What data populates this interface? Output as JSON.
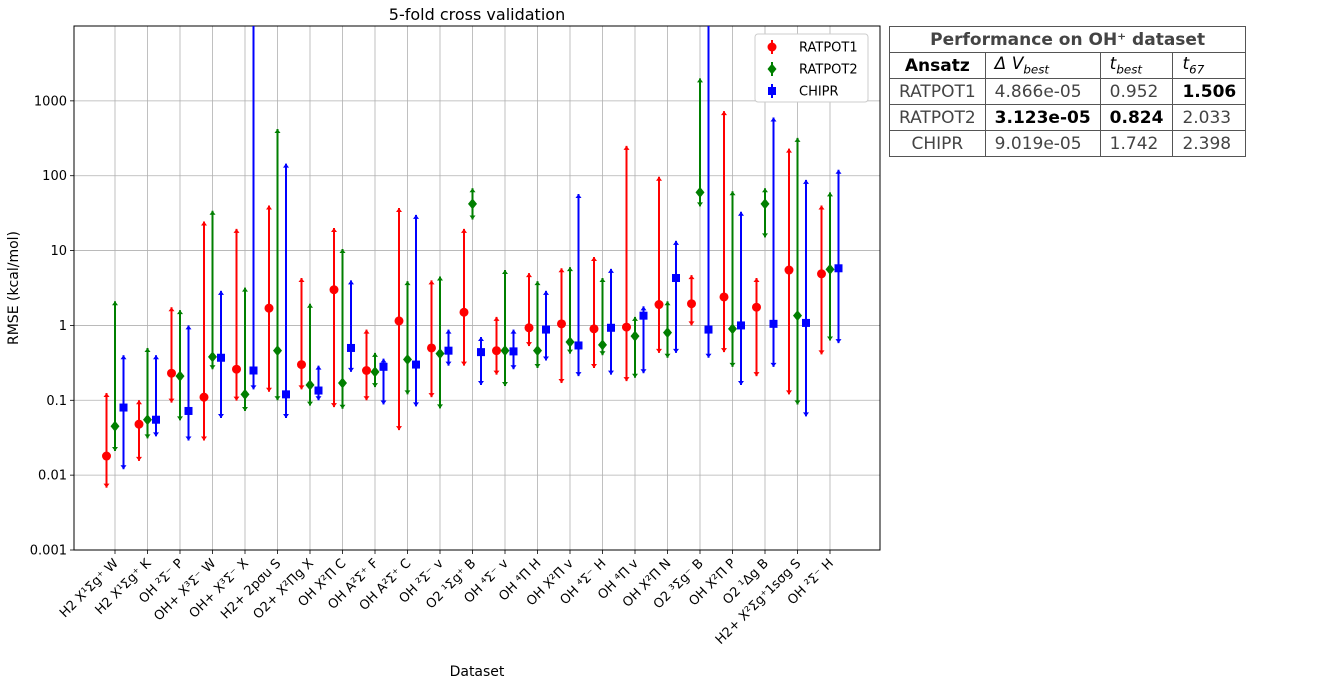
{
  "chart_data": {
    "type": "scatter",
    "title": "5-fold cross validation",
    "xlabel": "Dataset",
    "ylabel": "RMSE (kcal/mol)",
    "yscale": "log",
    "ylim": [
      0.001,
      10000
    ],
    "yticks": [
      "0.001",
      "0.01",
      "0.1",
      "1",
      "10",
      "100",
      "1000"
    ],
    "grid": true,
    "legend_position": "top-right",
    "categories": [
      "H2 X¹Σg⁺ W",
      "H2 X¹Σg⁺ K",
      "OH ²Σ⁻ P",
      "OH+ X³Σ⁻ W",
      "OH+ X³Σ⁻ X",
      "H2+ 2pσu S",
      "O2+ X²Πg X",
      "OH X²Π C",
      "OH A²Σ⁺ F",
      "OH A²Σ⁺ C",
      "OH ²Σ⁻ v",
      "O2 ¹Σg⁺ B",
      "OH ⁴Σ⁻ v",
      "OH ⁴Π H",
      "OH X²Π v",
      "OH ⁴Σ⁻ H",
      "OH ⁴Π v",
      "OH X²Π N",
      "O2 ³Σg⁻ B",
      "OH X²Π P",
      "O2 ¹Δg B",
      "H2+ X²Σg⁺1sσg S",
      "OH ²Σ⁻ H"
    ],
    "series": [
      {
        "name": "RATPOT1",
        "color": "#ff0000",
        "marker": "circle",
        "values": [
          0.018,
          0.048,
          0.23,
          0.11,
          0.26,
          1.7,
          0.3,
          3.0,
          0.25,
          1.15,
          0.5,
          1.5,
          0.46,
          0.93,
          1.05,
          0.9,
          0.95,
          1.9,
          1.95,
          2.4,
          1.75,
          5.5,
          4.9
        ],
        "lower": [
          0.0068,
          0.0155,
          0.093,
          0.029,
          0.099,
          0.13,
          0.14,
          0.081,
          0.1,
          0.04,
          0.11,
          0.29,
          0.22,
          0.53,
          0.17,
          0.27,
          0.18,
          0.43,
          1.0,
          0.44,
          0.21,
          0.12,
          0.41
        ],
        "upper": [
          0.125,
          0.1,
          1.75,
          24.5,
          19.5,
          40,
          4.3,
          20,
          0.88,
          37,
          4,
          19.5,
          1.3,
          5,
          5.8,
          8.2,
          250,
          97,
          4.7,
          730,
          4.3,
          230,
          40
        ]
      },
      {
        "name": "RATPOT2",
        "color": "#007f00",
        "marker": "diamond",
        "values": [
          0.045,
          0.055,
          0.21,
          0.38,
          0.12,
          0.46,
          0.16,
          0.17,
          0.24,
          0.35,
          0.42,
          42,
          0.46,
          0.46,
          0.6,
          0.55,
          0.72,
          0.8,
          60,
          0.9,
          42,
          1.35,
          5.6
        ],
        "lower": [
          0.021,
          0.031,
          0.054,
          0.26,
          0.072,
          0.1,
          0.085,
          0.077,
          0.15,
          0.12,
          0.078,
          26,
          0.155,
          0.27,
          0.42,
          0.4,
          0.2,
          0.37,
          39,
          0.28,
          15,
          0.088,
          0.63
        ],
        "upper": [
          2.1,
          0.5,
          1.6,
          34,
          3.2,
          420,
          1.95,
          10.5,
          0.43,
          3.9,
          4.5,
          68,
          5.5,
          3.9,
          6,
          4.3,
          1.3,
          2.1,
          2000,
          62,
          68,
          320,
          60
        ]
      },
      {
        "name": "CHIPR",
        "color": "#0000ff",
        "marker": "square",
        "values": [
          0.08,
          0.055,
          0.072,
          0.37,
          0.25,
          0.12,
          0.135,
          0.5,
          0.28,
          0.3,
          0.46,
          0.44,
          0.45,
          0.88,
          0.54,
          0.93,
          1.35,
          4.3,
          0.88,
          1.0,
          1.05,
          1.08,
          5.8
        ],
        "lower": [
          0.012,
          0.033,
          0.029,
          0.058,
          0.14,
          0.058,
          0.1,
          0.24,
          0.088,
          0.083,
          0.29,
          0.16,
          0.26,
          0.34,
          0.21,
          0.22,
          0.23,
          0.43,
          0.37,
          0.16,
          0.28,
          0.061,
          0.58
        ],
        "upper": [
          0.4,
          0.4,
          1.0,
          2.9,
          10000,
          145,
          0.29,
          4,
          0.36,
          30,
          0.88,
          0.7,
          0.88,
          2.9,
          57,
          5.7,
          1.8,
          13.5,
          10000,
          33,
          600,
          88,
          120
        ]
      }
    ]
  },
  "table": {
    "caption": "Performance on OH⁺ dataset",
    "headers": [
      "Ansatz",
      "Δ V",
      "best",
      "t",
      "best",
      "t",
      "67"
    ],
    "rows": [
      {
        "name": "RATPOT1",
        "dv": "4.866e-05",
        "tbest": "0.952",
        "t67": "1.506"
      },
      {
        "name": "RATPOT2",
        "dv": "3.123e-05",
        "tbest": "0.824",
        "t67": "2.033"
      },
      {
        "name": "CHIPR",
        "dv": "9.019e-05",
        "tbest": "1.742",
        "t67": "2.398"
      }
    ]
  }
}
